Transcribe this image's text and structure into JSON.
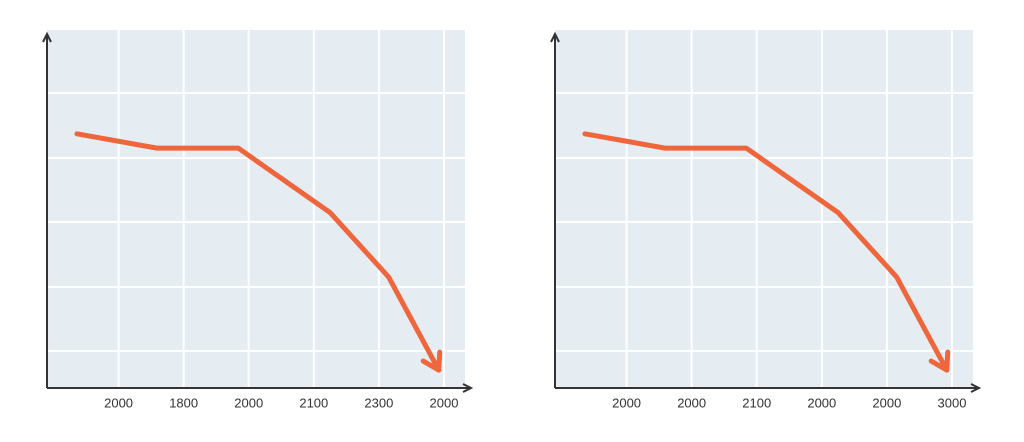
{
  "chart_data": [
    {
      "type": "line",
      "grid": true,
      "xlim": [
        -1.1,
        5.4
      ],
      "ylim": [
        0,
        100
      ],
      "xticks": [
        {
          "value": 0,
          "label": "2000"
        },
        {
          "value": 1,
          "label": "1800"
        },
        {
          "value": 2,
          "label": "2000"
        },
        {
          "value": 3,
          "label": "2100"
        },
        {
          "value": 4,
          "label": "2300"
        },
        {
          "value": 5,
          "label": "2000"
        }
      ],
      "series": [
        {
          "color": "#f0663c",
          "x": [
            -0.64,
            0.59,
            1.84,
            3.25,
            4.15,
            4.92
          ],
          "values": [
            71,
            67,
            67,
            49,
            31,
            5
          ]
        }
      ]
    },
    {
      "type": "line",
      "grid": true,
      "xlim": [
        -1.1,
        5.4
      ],
      "ylim": [
        0,
        100
      ],
      "xticks": [
        {
          "value": 0,
          "label": "2000"
        },
        {
          "value": 1,
          "label": "2000"
        },
        {
          "value": 2,
          "label": "2100"
        },
        {
          "value": 3,
          "label": "2000"
        },
        {
          "value": 4,
          "label": "2000"
        },
        {
          "value": 5,
          "label": "3000"
        }
      ],
      "series": [
        {
          "color": "#f0663c",
          "x": [
            -0.64,
            0.59,
            1.84,
            3.25,
            4.15,
            4.92
          ],
          "values": [
            71,
            67,
            67,
            49,
            31,
            5
          ]
        }
      ]
    }
  ]
}
